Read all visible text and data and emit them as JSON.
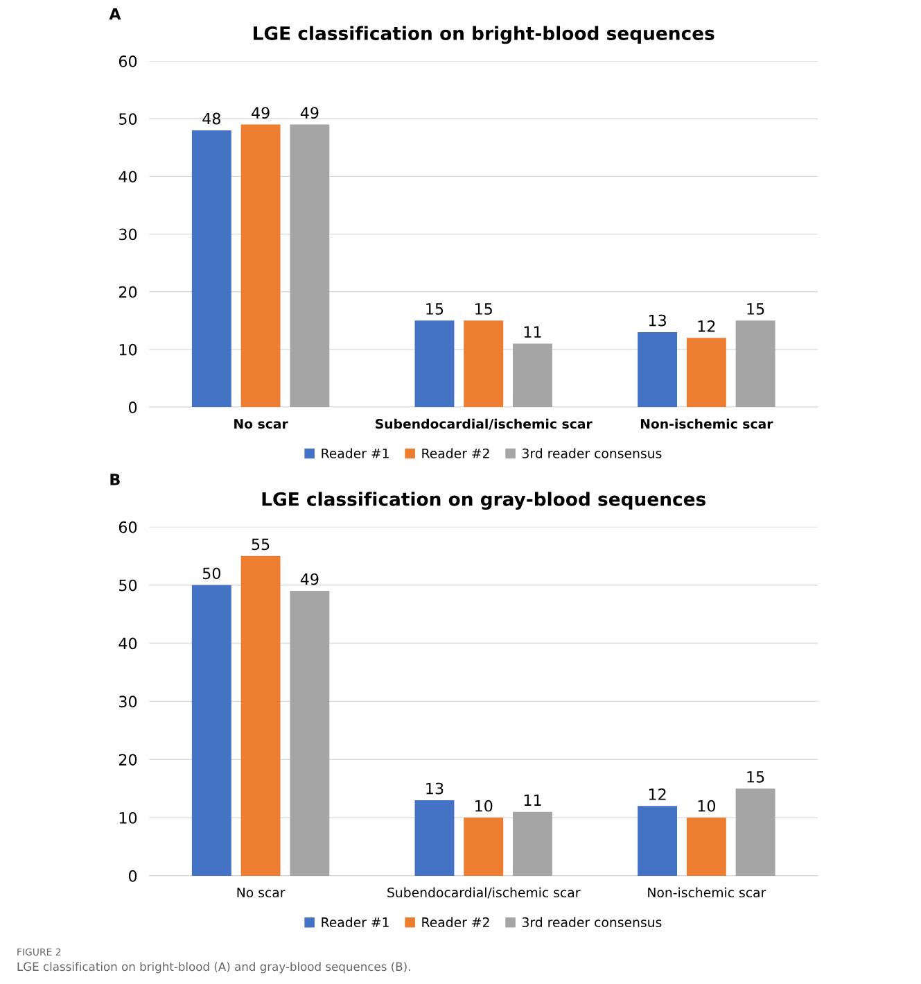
{
  "chart_data": [
    {
      "type": "bar",
      "title": "LGE classification on bright-blood sequences",
      "categories": [
        "No scar",
        "Subendocardial/ischemic scar",
        "Non-ischemic scar"
      ],
      "series": [
        {
          "name": "Reader #1",
          "color": "#4472c4",
          "values": [
            48,
            15,
            13
          ]
        },
        {
          "name": "Reader #2",
          "color": "#ed7d31",
          "values": [
            49,
            15,
            12
          ]
        },
        {
          "name": "3rd reader consensus",
          "color": "#a5a5a5",
          "values": [
            49,
            11,
            15
          ]
        }
      ],
      "ylim": [
        0,
        60
      ],
      "yticks": [
        0,
        10,
        20,
        30,
        40,
        50,
        60
      ],
      "grid": "y",
      "legend": "bottom",
      "data_labels": true,
      "annotations": [
        "A"
      ]
    },
    {
      "type": "bar",
      "title": "LGE classification on gray-blood sequences",
      "categories": [
        "No scar",
        "Subendocardial/ischemic scar",
        "Non-ischemic scar"
      ],
      "series": [
        {
          "name": "Reader #1",
          "color": "#4472c4",
          "values": [
            50,
            13,
            12
          ]
        },
        {
          "name": "Reader #2",
          "color": "#ed7d31",
          "values": [
            55,
            10,
            10
          ]
        },
        {
          "name": "3rd reader consensus",
          "color": "#a5a5a5",
          "values": [
            49,
            11,
            15
          ]
        }
      ],
      "ylim": [
        0,
        60
      ],
      "yticks": [
        0,
        10,
        20,
        30,
        40,
        50,
        60
      ],
      "grid": "y",
      "legend": "bottom",
      "data_labels": true,
      "annotations": [
        "B",
        "FIGURE 2",
        "LGE classification on bright-blood (A) and gray-blood sequences (B)."
      ]
    }
  ]
}
